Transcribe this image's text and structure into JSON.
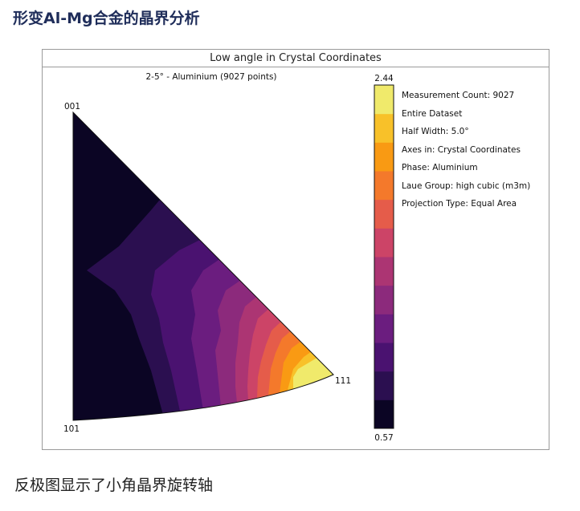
{
  "heading": "形变Al-Mg合金的晶界分析",
  "figure": {
    "title": "Low angle in Crystal Coordinates",
    "subtitle": "2-5° - Aluminium (9027 points)",
    "corner_labels": {
      "top": "001",
      "bottom": "101",
      "right": "111"
    },
    "colorbar": {
      "max_label": "2.44",
      "min_label": "0.57",
      "min": 0.57,
      "max": 2.44,
      "colors_bottom_to_top": [
        "#0b0524",
        "#2b0f50",
        "#4a1270",
        "#6b1d7f",
        "#8c2a7c",
        "#ac3573",
        "#cc4467",
        "#e55c4a",
        "#f4792b",
        "#f99a13",
        "#f8c129",
        "#f0ea6b"
      ]
    },
    "legend_lines": [
      "Measurement Count: 9027",
      "Entire Dataset",
      "Half Width: 5.0°",
      "Axes in: Crystal Coordinates",
      "Phase: Aluminium",
      "Laue Group: high cubic (m3m)",
      "Projection Type: Equal Area"
    ]
  },
  "caption": "反极图显示了小角晶界旋转轴"
}
